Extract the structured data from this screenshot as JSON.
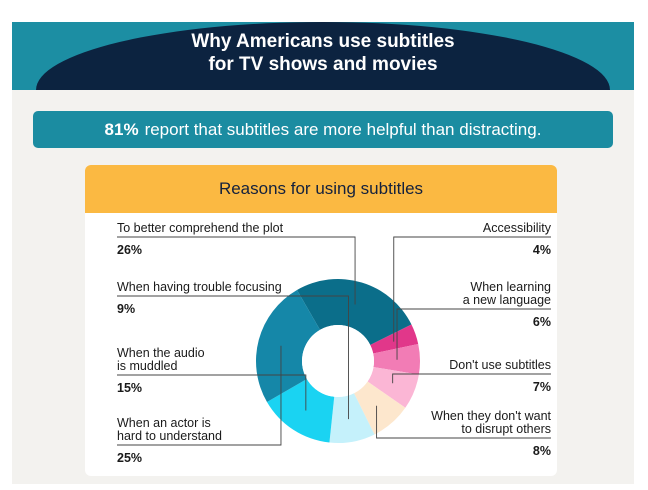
{
  "header": {
    "title_line1": "Why Americans use subtitles",
    "title_line2": "for TV shows and movies"
  },
  "banner": {
    "stat": "81%",
    "text": "report that subtitles are more helpful than distracting."
  },
  "card": {
    "heading": "Reasons for using subtitles"
  },
  "colors": {
    "navy": "#0c2340",
    "teal": "#1b8ca1",
    "amber": "#fbb942",
    "background": "#f3f2ef"
  },
  "chart_data": {
    "type": "pie",
    "title": "Reasons for using subtitles",
    "donut": true,
    "unit": "%",
    "slices": [
      {
        "label_lines": [
          "To better comprehend the plot"
        ],
        "value": 26,
        "value_label": "26%",
        "color": "#0b6e8a",
        "side": "left"
      },
      {
        "label_lines": [
          "Accessibility"
        ],
        "value": 4,
        "value_label": "4%",
        "color": "#e1378a",
        "side": "right"
      },
      {
        "label_lines": [
          "When learning",
          "a new language"
        ],
        "value": 6,
        "value_label": "6%",
        "color": "#f27cb5",
        "side": "right"
      },
      {
        "label_lines": [
          "Don't use subtitles"
        ],
        "value": 7,
        "value_label": "7%",
        "color": "#fbb6d5",
        "side": "right"
      },
      {
        "label_lines": [
          "When they don't want",
          "to disrupt others"
        ],
        "value": 8,
        "value_label": "8%",
        "color": "#fde7cd",
        "side": "right"
      },
      {
        "label_lines": [
          "When having trouble focusing"
        ],
        "value": 9,
        "value_label": "9%",
        "color": "#c5f1fb",
        "side": "left"
      },
      {
        "label_lines": [
          "When the audio",
          "is muddled"
        ],
        "value": 15,
        "value_label": "15%",
        "color": "#1ad3f2",
        "side": "left"
      },
      {
        "label_lines": [
          "When an actor is",
          "hard to understand"
        ],
        "value": 25,
        "value_label": "25%",
        "color": "#1587a8",
        "side": "left"
      }
    ]
  }
}
